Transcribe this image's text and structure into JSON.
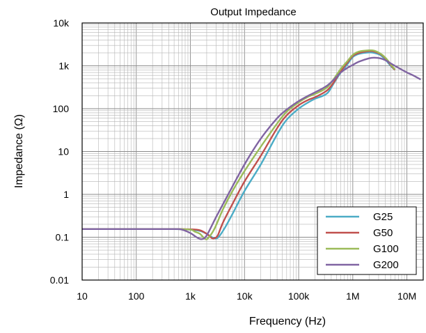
{
  "chart_data": {
    "type": "line",
    "title": "Output Impedance",
    "xlabel": "Frequency (Hz)",
    "ylabel": "Impedance (Ω)",
    "x_scale": "log",
    "y_scale": "log",
    "xlim": [
      10,
      20000000
    ],
    "ylim": [
      0.01,
      10000
    ],
    "grid": true,
    "legend_position": "bottom-right",
    "x_ticks": [
      {
        "value": 10,
        "label": "10"
      },
      {
        "value": 100,
        "label": "100"
      },
      {
        "value": 1000,
        "label": "1k"
      },
      {
        "value": 10000,
        "label": "10k"
      },
      {
        "value": 100000,
        "label": "100k"
      },
      {
        "value": 1000000,
        "label": "1M"
      },
      {
        "value": 10000000,
        "label": "10M"
      }
    ],
    "y_ticks": [
      {
        "value": 0.01,
        "label": "0.01"
      },
      {
        "value": 0.1,
        "label": "0.1"
      },
      {
        "value": 1,
        "label": "1"
      },
      {
        "value": 10,
        "label": "10"
      },
      {
        "value": 100,
        "label": "100"
      },
      {
        "value": 1000,
        "label": "1k"
      },
      {
        "value": 10000,
        "label": "10k"
      }
    ],
    "series": [
      {
        "name": "G25",
        "color": "#4bacc6",
        "points": [
          [
            10,
            0.155
          ],
          [
            100,
            0.155
          ],
          [
            500,
            0.155
          ],
          [
            1000,
            0.15
          ],
          [
            1500,
            0.14
          ],
          [
            2000,
            0.12
          ],
          [
            2500,
            0.1
          ],
          [
            3000,
            0.093
          ],
          [
            3500,
            0.11
          ],
          [
            4500,
            0.18
          ],
          [
            6000,
            0.35
          ],
          [
            10000,
            1.2
          ],
          [
            20000,
            5
          ],
          [
            40000,
            25
          ],
          [
            60000,
            55
          ],
          [
            100000,
            100
          ],
          [
            150000,
            140
          ],
          [
            200000,
            170
          ],
          [
            280000,
            200
          ],
          [
            350000,
            240
          ],
          [
            450000,
            400
          ],
          [
            600000,
            700
          ],
          [
            800000,
            1100
          ],
          [
            1000000,
            1600
          ],
          [
            1300000,
            1900
          ],
          [
            2000000,
            2050
          ],
          [
            2500000,
            2000
          ],
          [
            3200000,
            1800
          ],
          [
            4000000,
            1400
          ],
          [
            5000000,
            1000
          ],
          [
            6000000,
            800
          ]
        ]
      },
      {
        "name": "G50",
        "color": "#c0504d",
        "points": [
          [
            10,
            0.155
          ],
          [
            100,
            0.155
          ],
          [
            500,
            0.155
          ],
          [
            1000,
            0.153
          ],
          [
            1500,
            0.145
          ],
          [
            2000,
            0.12
          ],
          [
            2500,
            0.095
          ],
          [
            2800,
            0.095
          ],
          [
            3200,
            0.11
          ],
          [
            4000,
            0.22
          ],
          [
            6000,
            0.6
          ],
          [
            10000,
            2
          ],
          [
            20000,
            8
          ],
          [
            40000,
            35
          ],
          [
            60000,
            70
          ],
          [
            100000,
            120
          ],
          [
            150000,
            160
          ],
          [
            200000,
            185
          ],
          [
            280000,
            230
          ],
          [
            350000,
            280
          ],
          [
            450000,
            420
          ],
          [
            600000,
            750
          ],
          [
            800000,
            1200
          ],
          [
            1000000,
            1700
          ],
          [
            1300000,
            2000
          ],
          [
            2000000,
            2200
          ],
          [
            2500000,
            2150
          ],
          [
            3200000,
            1900
          ],
          [
            4000000,
            1500
          ],
          [
            5000000,
            1050
          ],
          [
            6000000,
            800
          ]
        ]
      },
      {
        "name": "G100",
        "color": "#9bbb59",
        "points": [
          [
            10,
            0.155
          ],
          [
            100,
            0.155
          ],
          [
            500,
            0.155
          ],
          [
            1000,
            0.15
          ],
          [
            1200,
            0.135
          ],
          [
            1500,
            0.12
          ],
          [
            1900,
            0.09
          ],
          [
            2200,
            0.1
          ],
          [
            2800,
            0.16
          ],
          [
            4000,
            0.45
          ],
          [
            6000,
            1.2
          ],
          [
            10000,
            3.5
          ],
          [
            20000,
            13
          ],
          [
            40000,
            45
          ],
          [
            60000,
            85
          ],
          [
            100000,
            140
          ],
          [
            150000,
            190
          ],
          [
            200000,
            220
          ],
          [
            280000,
            270
          ],
          [
            350000,
            330
          ],
          [
            450000,
            500
          ],
          [
            600000,
            850
          ],
          [
            800000,
            1300
          ],
          [
            1000000,
            1800
          ],
          [
            1300000,
            2150
          ],
          [
            2000000,
            2300
          ],
          [
            2500000,
            2250
          ],
          [
            3200000,
            1950
          ],
          [
            4000000,
            1550
          ],
          [
            5000000,
            1100
          ],
          [
            6000000,
            820
          ]
        ]
      },
      {
        "name": "G200",
        "color": "#8064a2",
        "points": [
          [
            10,
            0.155
          ],
          [
            100,
            0.155
          ],
          [
            500,
            0.155
          ],
          [
            700,
            0.15
          ],
          [
            1000,
            0.125
          ],
          [
            1300,
            0.1
          ],
          [
            1600,
            0.09
          ],
          [
            2000,
            0.11
          ],
          [
            3000,
            0.3
          ],
          [
            5000,
            1
          ],
          [
            10000,
            5
          ],
          [
            20000,
            20
          ],
          [
            40000,
            60
          ],
          [
            60000,
            95
          ],
          [
            100000,
            150
          ],
          [
            150000,
            200
          ],
          [
            200000,
            240
          ],
          [
            280000,
            300
          ],
          [
            350000,
            360
          ],
          [
            450000,
            480
          ],
          [
            600000,
            700
          ],
          [
            800000,
            900
          ],
          [
            1000000,
            1050
          ],
          [
            1300000,
            1250
          ],
          [
            2000000,
            1500
          ],
          [
            2500000,
            1550
          ],
          [
            3200000,
            1500
          ],
          [
            4000000,
            1350
          ],
          [
            6000000,
            1000
          ],
          [
            10000000,
            700
          ],
          [
            13000000,
            600
          ],
          [
            18000000,
            480
          ]
        ]
      }
    ]
  }
}
